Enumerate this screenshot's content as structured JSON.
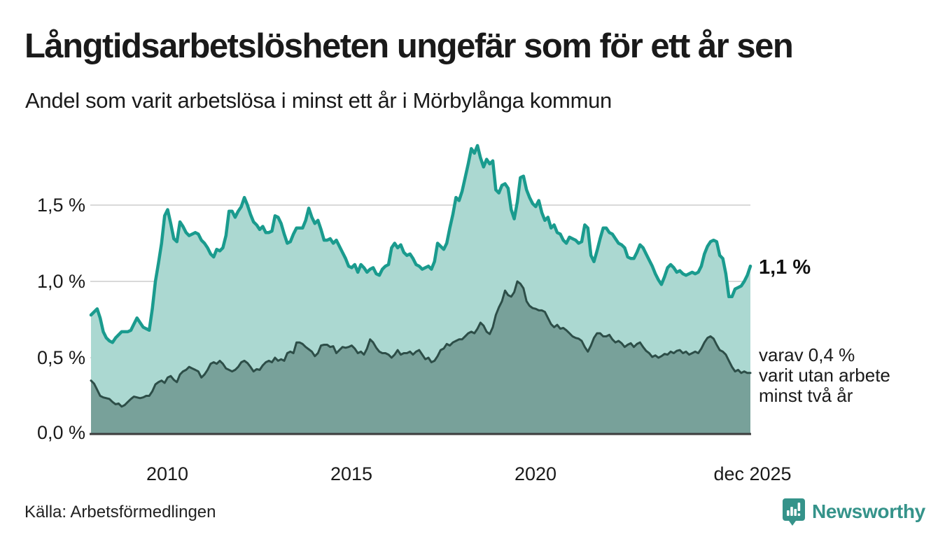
{
  "title": "Långtidsarbetslösheten ungefär som för ett år sen",
  "subtitle": "Andel som varit arbetslösa i minst ett år i Mörbylånga kommun",
  "source": "Källa: Arbetsförmedlingen",
  "branding": {
    "name": "Newsworthy",
    "color": "#35938a"
  },
  "annotations": {
    "latest_total": "1,1 %",
    "secondary_line1": "varav 0,4 %",
    "secondary_line2": "varit utan arbete",
    "secondary_line3": "minst två år"
  },
  "chart_data": {
    "type": "area",
    "x_interval": "monthly",
    "x_start": "2008-01",
    "x_end": "2025-12",
    "x_tick_labels": [
      "2010",
      "2015",
      "2020",
      "dec 2025"
    ],
    "y_tick_labels": [
      "0,0 %",
      "0,5 %",
      "1,0 %",
      "1,5 %"
    ],
    "y_tick_values": [
      0.0,
      0.5,
      1.0,
      1.5
    ],
    "ylim": [
      0,
      1.95
    ],
    "unit": "percent",
    "grid": "horizontal",
    "grid_color": "#d9d9d9",
    "baseline_color": "#3d3d3d",
    "latest": {
      "minst_ett_ar_pct": 1.1,
      "minst_tva_ar_pct": 0.4
    },
    "series": [
      {
        "name": "Andel arbetslösa minst ett år",
        "line_color": "#1a9b8e",
        "fill_color": "#abd8d1",
        "line_width": 4.5,
        "values": [
          0.78,
          0.8,
          0.82,
          0.76,
          0.67,
          0.63,
          0.61,
          0.6,
          0.63,
          0.65,
          0.67,
          0.67,
          0.67,
          0.68,
          0.72,
          0.76,
          0.73,
          0.7,
          0.69,
          0.68,
          0.82,
          1.0,
          1.12,
          1.25,
          1.43,
          1.47,
          1.38,
          1.28,
          1.26,
          1.39,
          1.36,
          1.32,
          1.3,
          1.31,
          1.32,
          1.31,
          1.27,
          1.25,
          1.22,
          1.18,
          1.16,
          1.21,
          1.2,
          1.22,
          1.3,
          1.46,
          1.46,
          1.42,
          1.46,
          1.49,
          1.55,
          1.5,
          1.44,
          1.39,
          1.37,
          1.34,
          1.36,
          1.32,
          1.32,
          1.33,
          1.43,
          1.42,
          1.38,
          1.31,
          1.25,
          1.26,
          1.31,
          1.35,
          1.35,
          1.35,
          1.4,
          1.48,
          1.42,
          1.38,
          1.4,
          1.34,
          1.27,
          1.27,
          1.28,
          1.25,
          1.27,
          1.23,
          1.19,
          1.15,
          1.1,
          1.09,
          1.11,
          1.06,
          1.11,
          1.09,
          1.06,
          1.08,
          1.09,
          1.05,
          1.04,
          1.08,
          1.1,
          1.11,
          1.22,
          1.25,
          1.22,
          1.24,
          1.19,
          1.17,
          1.18,
          1.15,
          1.11,
          1.1,
          1.08,
          1.09,
          1.1,
          1.08,
          1.13,
          1.25,
          1.23,
          1.21,
          1.25,
          1.35,
          1.44,
          1.55,
          1.53,
          1.59,
          1.68,
          1.77,
          1.87,
          1.84,
          1.89,
          1.81,
          1.75,
          1.8,
          1.77,
          1.79,
          1.6,
          1.58,
          1.63,
          1.64,
          1.61,
          1.47,
          1.41,
          1.52,
          1.68,
          1.69,
          1.6,
          1.55,
          1.51,
          1.49,
          1.53,
          1.45,
          1.4,
          1.42,
          1.35,
          1.37,
          1.32,
          1.31,
          1.27,
          1.25,
          1.29,
          1.28,
          1.27,
          1.25,
          1.26,
          1.37,
          1.35,
          1.17,
          1.13,
          1.2,
          1.28,
          1.35,
          1.35,
          1.32,
          1.31,
          1.28,
          1.25,
          1.24,
          1.22,
          1.16,
          1.15,
          1.15,
          1.19,
          1.24,
          1.22,
          1.18,
          1.14,
          1.1,
          1.05,
          1.01,
          0.98,
          1.03,
          1.09,
          1.11,
          1.09,
          1.06,
          1.07,
          1.05,
          1.04,
          1.05,
          1.06,
          1.05,
          1.06,
          1.1,
          1.18,
          1.23,
          1.26,
          1.27,
          1.26,
          1.17,
          1.15,
          1.05,
          0.9,
          0.9,
          0.95,
          0.96,
          0.97,
          1.0,
          1.04,
          1.1
        ]
      },
      {
        "name": "Varav arbetslösa minst två år",
        "line_color": "#2d4e48",
        "fill_color": "#78a19a",
        "line_width": 3,
        "values": [
          0.35,
          0.33,
          0.29,
          0.25,
          0.24,
          0.235,
          0.23,
          0.21,
          0.195,
          0.2,
          0.18,
          0.19,
          0.21,
          0.23,
          0.245,
          0.24,
          0.235,
          0.24,
          0.25,
          0.25,
          0.28,
          0.325,
          0.34,
          0.35,
          0.335,
          0.37,
          0.38,
          0.355,
          0.34,
          0.39,
          0.41,
          0.42,
          0.44,
          0.43,
          0.42,
          0.41,
          0.37,
          0.39,
          0.42,
          0.46,
          0.47,
          0.46,
          0.48,
          0.46,
          0.43,
          0.42,
          0.41,
          0.42,
          0.44,
          0.47,
          0.48,
          0.465,
          0.44,
          0.41,
          0.425,
          0.42,
          0.45,
          0.47,
          0.48,
          0.47,
          0.5,
          0.48,
          0.49,
          0.48,
          0.53,
          0.54,
          0.53,
          0.6,
          0.6,
          0.59,
          0.57,
          0.555,
          0.54,
          0.51,
          0.53,
          0.58,
          0.585,
          0.585,
          0.57,
          0.575,
          0.53,
          0.55,
          0.57,
          0.565,
          0.57,
          0.58,
          0.56,
          0.53,
          0.54,
          0.52,
          0.56,
          0.62,
          0.6,
          0.565,
          0.54,
          0.53,
          0.53,
          0.52,
          0.5,
          0.52,
          0.55,
          0.52,
          0.53,
          0.53,
          0.54,
          0.52,
          0.54,
          0.55,
          0.52,
          0.49,
          0.5,
          0.47,
          0.48,
          0.51,
          0.55,
          0.56,
          0.59,
          0.58,
          0.6,
          0.61,
          0.62,
          0.62,
          0.64,
          0.66,
          0.67,
          0.66,
          0.69,
          0.73,
          0.71,
          0.67,
          0.655,
          0.7,
          0.78,
          0.83,
          0.87,
          0.94,
          0.91,
          0.9,
          0.93,
          1.0,
          0.985,
          0.955,
          0.87,
          0.84,
          0.825,
          0.82,
          0.81,
          0.81,
          0.8,
          0.76,
          0.72,
          0.7,
          0.715,
          0.69,
          0.695,
          0.68,
          0.66,
          0.64,
          0.63,
          0.625,
          0.61,
          0.57,
          0.54,
          0.58,
          0.63,
          0.66,
          0.66,
          0.64,
          0.64,
          0.65,
          0.62,
          0.6,
          0.61,
          0.595,
          0.57,
          0.585,
          0.595,
          0.57,
          0.59,
          0.6,
          0.57,
          0.545,
          0.53,
          0.505,
          0.515,
          0.5,
          0.51,
          0.525,
          0.52,
          0.54,
          0.53,
          0.545,
          0.55,
          0.53,
          0.54,
          0.52,
          0.53,
          0.54,
          0.53,
          0.56,
          0.6,
          0.63,
          0.64,
          0.625,
          0.585,
          0.55,
          0.54,
          0.52,
          0.48,
          0.44,
          0.41,
          0.42,
          0.4,
          0.41,
          0.4,
          0.4
        ]
      }
    ]
  }
}
